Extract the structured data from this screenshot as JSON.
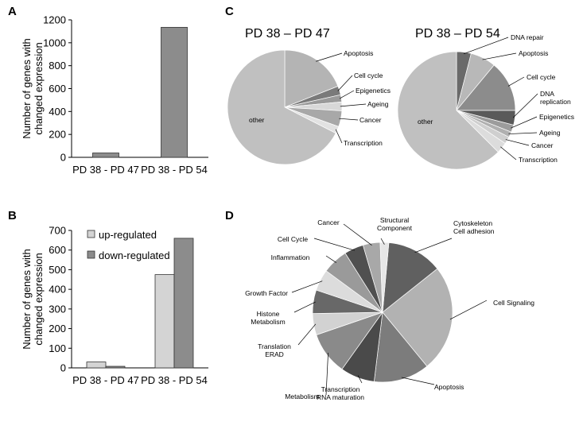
{
  "chart_data": [
    {
      "panel": "A",
      "type": "bar",
      "ylabel": "Number of genes with changed expression",
      "categories": [
        "PD 38 - PD 47",
        "PD 38 - PD 54"
      ],
      "values": [
        38,
        1135
      ],
      "ylim": [
        0,
        1200
      ],
      "yticks": [
        0,
        200,
        400,
        600,
        800,
        1000,
        1200
      ],
      "colors": {
        "bar": "#8c8c8c"
      }
    },
    {
      "panel": "B",
      "type": "bar",
      "ylabel": "Number of genes with changed expression",
      "categories": [
        "PD 38 - PD 47",
        "PD 38 - PD 54"
      ],
      "series": [
        {
          "name": "up-regulated",
          "values": [
            30,
            475
          ],
          "color": "#d4d4d4"
        },
        {
          "name": "down-regulated",
          "values": [
            8,
            660
          ],
          "color": "#8c8c8c"
        }
      ],
      "ylim": [
        0,
        700
      ],
      "yticks": [
        0,
        100,
        200,
        300,
        400,
        500,
        600,
        700
      ],
      "legend": "top-left"
    },
    {
      "panel": "C",
      "type": "pie",
      "pies": [
        {
          "title": "PD 38 – PD 47",
          "slices": [
            {
              "label": "Apoptosis",
              "value": 19,
              "color": "#b4b4b4"
            },
            {
              "label": "Cell cycle",
              "value": 2.5,
              "color": "#7a7a7a"
            },
            {
              "label": "Epigenetics",
              "value": 2,
              "color": "#9a9a9a"
            },
            {
              "label": "Ageing",
              "value": 2.5,
              "color": "#d8d8d8"
            },
            {
              "label": "Cancer",
              "value": 4.5,
              "color": "#a8a8a8"
            },
            {
              "label": "Transcription",
              "value": 2,
              "color": "#e2e2e2"
            },
            {
              "label": "other",
              "value": 67.5,
              "color": "#c0c0c0"
            }
          ]
        },
        {
          "title": "PD 38 – PD 54",
          "slices": [
            {
              "label": "DNA repair",
              "value": 4,
              "color": "#6a6a6a"
            },
            {
              "label": "Apoptosis",
              "value": 7,
              "color": "#b8b8b8"
            },
            {
              "label": "Cell cycle",
              "value": 14,
              "color": "#8c8c8c"
            },
            {
              "label": "DNA replication",
              "value": 4,
              "color": "#5a5a5a"
            },
            {
              "label": "Epigenetics",
              "value": 2,
              "color": "#9c9c9c"
            },
            {
              "label": "Ageing",
              "value": 1.5,
              "color": "#b0b0b0"
            },
            {
              "label": "Cancer",
              "value": 2,
              "color": "#cfcfcf"
            },
            {
              "label": "Transcription",
              "value": 3,
              "color": "#dcdcdc"
            },
            {
              "label": "other",
              "value": 62.5,
              "color": "#c0c0c0"
            }
          ]
        }
      ]
    },
    {
      "panel": "D",
      "type": "pie",
      "slices": [
        {
          "label": "Cytoskeleton\nCell adhesion",
          "value": 13,
          "color": "#606060"
        },
        {
          "label": "Cell Signaling",
          "value": 25,
          "color": "#b2b2b2"
        },
        {
          "label": "Apoptosis",
          "value": 13,
          "color": "#7c7c7c"
        },
        {
          "label": "Transcription\nRNA maturation",
          "value": 8,
          "color": "#4a4a4a"
        },
        {
          "label": "Metabolism",
          "value": 10,
          "color": "#8a8a8a"
        },
        {
          "label": "Translation\nERAD",
          "value": 5,
          "color": "#d2d2d2"
        },
        {
          "label": "Histone\nMetabolism",
          "value": 5.5,
          "color": "#686868"
        },
        {
          "label": "Growth Factor",
          "value": 5,
          "color": "#dcdcdc"
        },
        {
          "label": "Inflammation",
          "value": 6,
          "color": "#9a9a9a"
        },
        {
          "label": "Cell Cycle",
          "value": 4.5,
          "color": "#505050"
        },
        {
          "label": "Cancer",
          "value": 4,
          "color": "#a8a8a8"
        },
        {
          "label": "Structural\nComponent",
          "value": 2,
          "color": "#e6e6e6"
        }
      ]
    }
  ]
}
